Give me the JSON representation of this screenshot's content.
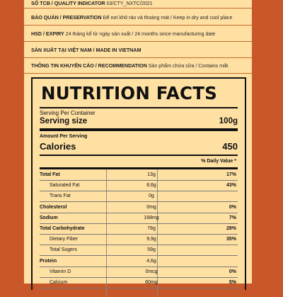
{
  "info": [
    {
      "label": "SỐ TCB / QUALITY INDICATOR",
      "value": "03/CTY_NXTC/2021"
    },
    {
      "label": "BẢO QUẢN / PRESERVATION",
      "value": "Để nơi khô ráo và thoáng mát / Keep in dry and cool place"
    },
    {
      "label": "HSD / EXPIRY",
      "value": "24 tháng kể từ ngày sản xuất / 24 months since manufacturing date"
    },
    {
      "label": "SẢN XUẤT TẠI VIỆT NAM / MADE IN VIETNAM",
      "value": ""
    },
    {
      "label": "THÔNG TIN KHUYẾN CÁO / RECOMMENDATION",
      "value": "Sản phẩm chứa sữa / Contains milk"
    }
  ],
  "nutrition": {
    "title": "NUTRITION FACTS",
    "serving_per_container_label": "Serving Per Container",
    "serving_size_label": "Serving size",
    "serving_size_value": "100g",
    "amount_per_serving_label": "Amount Per Serving",
    "calories_label": "Calories",
    "calories_value": "450",
    "daily_value_header": "% Daily Value *",
    "rows": [
      {
        "name": "Total Fat",
        "amount": "13g",
        "dv": "17%",
        "bold": true,
        "indent": false
      },
      {
        "name": "Saturated Fat",
        "amount": "8,6g",
        "dv": "43%",
        "bold": false,
        "indent": true
      },
      {
        "name": "Trans Fat",
        "amount": "0g",
        "dv": "",
        "bold": false,
        "indent": true
      },
      {
        "name": "Cholesterol",
        "amount": "0mg",
        "dv": "0%",
        "bold": true,
        "indent": false
      },
      {
        "name": "Sodium",
        "amount": "168mg",
        "dv": "7%",
        "bold": true,
        "indent": false
      },
      {
        "name": "Total Carbohydrate",
        "amount": "78g",
        "dv": "28%",
        "bold": true,
        "indent": false
      },
      {
        "name": "Dietary Fiber",
        "amount": "9,9g",
        "dv": "35%",
        "bold": false,
        "indent": true
      },
      {
        "name": "Total Sugers",
        "amount": "59g",
        "dv": "",
        "bold": false,
        "indent": true
      },
      {
        "name": "Protein",
        "amount": "4,6g",
        "dv": "",
        "bold": true,
        "indent": false
      },
      {
        "name": "Vitamin D",
        "amount": "0mcg",
        "dv": "0%",
        "bold": false,
        "indent": true
      },
      {
        "name": "Calcium",
        "amount": "60mg",
        "dv": "5%",
        "bold": false,
        "indent": true
      }
    ]
  }
}
